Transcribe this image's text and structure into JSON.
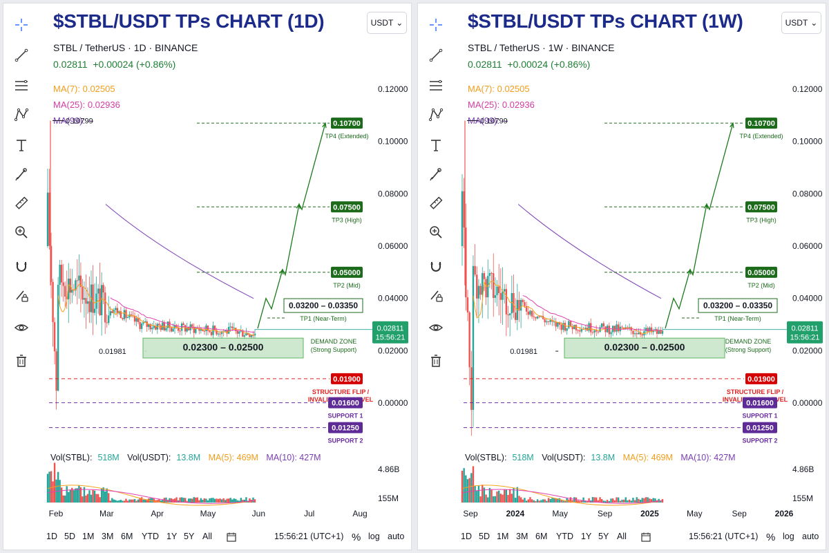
{
  "panels": [
    {
      "title": "$STBL/USDT TPs CHART (1D)",
      "currency_button": "USDT",
      "symbol": "STBL / TetherUS",
      "interval": "1D",
      "exchange": "BINANCE",
      "price": "0.02811",
      "change": "+0.00024 (+0.86%)",
      "ma7": "MA(7): 0.02505",
      "ma25": "MA(25): 0.02936",
      "ma99": "MA(99): --",
      "vol_stbl_label": "Vol(STBL):",
      "vol_stbl": "518M",
      "vol_usdt_label": "Vol(USDT):",
      "vol_usdt": "13.8M",
      "vol_ma5": "MA(5): 469M",
      "vol_ma10": "MA(10): 427M",
      "vol_axis_top": "4.86B",
      "vol_axis_bottom": "155M",
      "last_price": "0.02811",
      "countdown": "15:56:21",
      "time_labels": [
        "Feb",
        "Mar",
        "Apr",
        "May",
        "Jun",
        "Jul",
        "Aug"
      ],
      "clock": "15:56:21 (UTC+1)"
    },
    {
      "title": "$STBL/USDT TPs CHART (1W)",
      "currency_button": "USDT",
      "symbol": "STBL / TetherUS",
      "interval": "1W",
      "exchange": "BINANCE",
      "price": "0.02811",
      "change": "+0.00024 (+0.86%)",
      "ma7": "MA(7): 0.02505",
      "ma25": "MA(25): 0.02936",
      "ma99": "MA(99): --",
      "vol_stbl_label": "Vol(STBL):",
      "vol_stbl": "518M",
      "vol_usdt_label": "Vol(USDT):",
      "vol_usdt": "13.8M",
      "vol_ma5": "MA(5): 469M",
      "vol_ma10": "MA(10): 427M",
      "vol_axis_top": "4.86B",
      "vol_axis_bottom": "155M",
      "last_price": "0.02811",
      "countdown": "15:56:21",
      "time_labels": [
        "Sep",
        "2024",
        "May",
        "Sep",
        "2025",
        "May",
        "Sep",
        "2026"
      ],
      "clock": "15:56:21 (UTC+1)"
    }
  ],
  "timeframes": [
    "1D",
    "5D",
    "1M",
    "3M",
    "6M",
    "YTD",
    "1Y",
    "5Y",
    "All"
  ],
  "bottom_right": [
    "%",
    "log",
    "auto"
  ],
  "tools": [
    "crosshair-icon",
    "trendline-icon",
    "fib-icon",
    "pattern-icon",
    "text-icon",
    "brush-icon",
    "ruler-icon",
    "zoom-icon",
    "magnet-icon",
    "lock-drawing-icon",
    "eye-icon",
    "trash-icon"
  ],
  "chart_data": [
    {
      "type": "candlestick",
      "title": "$STBL/USDT TPs CHART (1D)",
      "y_ticks": [
        "0.12000",
        "0.10000",
        "0.08000",
        "0.06000",
        "0.04000",
        "0.02000",
        "0.00000"
      ],
      "ylim": [
        0.0,
        0.12
      ],
      "x_ticks": [
        "Feb",
        "Mar",
        "Apr",
        "May",
        "Jun",
        "Jul",
        "Aug"
      ],
      "high_marker": "0.10799",
      "low_marker": "0.01981",
      "levels": [
        {
          "value": "0.10700",
          "label": "TP4 (Extended)",
          "kind": "tp"
        },
        {
          "value": "0.07500",
          "label": "TP3 (High)",
          "kind": "tp"
        },
        {
          "value": "0.05000",
          "label": "TP2 (Mid)",
          "kind": "tp"
        },
        {
          "value": "0.03200 – 0.03350",
          "label": "TP1 (Near-Term)",
          "kind": "tp1"
        },
        {
          "value": "0.02300 – 0.02500",
          "label": "DEMAND ZONE",
          "label2": "(Strong Support)",
          "kind": "zone"
        },
        {
          "value": "0.01900",
          "label": "STRUCTURE FLIP /",
          "label2": "INVALIDATION LEVEL",
          "kind": "invalid"
        },
        {
          "value": "0.01600",
          "label": "SUPPORT 1",
          "kind": "support"
        },
        {
          "value": "0.01250",
          "label": "SUPPORT 2",
          "kind": "support"
        }
      ],
      "colors": {
        "up": "#26a69a",
        "down": "#ef5350",
        "tp": "#1b6b1b",
        "invalid": "#e02020",
        "support": "#6a2ca0",
        "ma7": "#f7a21b",
        "ma25": "#e040b0",
        "ma99": "#7b3fb5"
      }
    },
    {
      "type": "candlestick",
      "title": "$STBL/USDT TPs CHART (1W)",
      "y_ticks": [
        "0.12000",
        "0.10000",
        "0.08000",
        "0.06000",
        "0.04000",
        "0.02000",
        "0.00000"
      ],
      "ylim": [
        0.0,
        0.12
      ],
      "x_ticks": [
        "Sep",
        "2024",
        "May",
        "Sep",
        "2025",
        "May",
        "Sep",
        "2026"
      ],
      "high_marker": "0.10799",
      "low_marker": "0.01981",
      "levels": [
        {
          "value": "0.10700",
          "label": "TP4 (Extended)",
          "kind": "tp"
        },
        {
          "value": "0.07500",
          "label": "TP3 (High)",
          "kind": "tp"
        },
        {
          "value": "0.05000",
          "label": "TP2 (Mid)",
          "kind": "tp"
        },
        {
          "value": "0.03200 – 0.03350",
          "label": "TP1 (Near-Term)",
          "kind": "tp1"
        },
        {
          "value": "0.02300 – 0.02500",
          "label": "DEMAND ZONE",
          "label2": "(Strong Support)",
          "kind": "zone"
        },
        {
          "value": "0.01900",
          "label": "STRUCTURE FLIP /",
          "label2": "INVALIDATION LEVEL",
          "kind": "invalid"
        },
        {
          "value": "0.01600",
          "label": "SUPPORT 1",
          "kind": "support"
        },
        {
          "value": "0.01250",
          "label": "SUPPORT 2",
          "kind": "support"
        }
      ],
      "colors": {
        "up": "#26a69a",
        "down": "#ef5350",
        "tp": "#1b6b1b",
        "invalid": "#e02020",
        "support": "#6a2ca0",
        "ma7": "#f7a21b",
        "ma25": "#e040b0",
        "ma99": "#7b3fb5"
      }
    }
  ]
}
